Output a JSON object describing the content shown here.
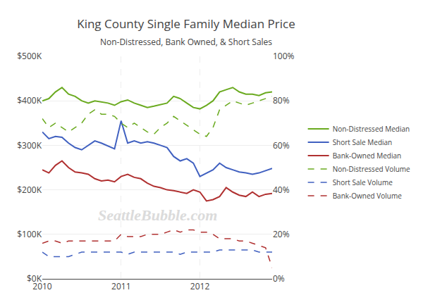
{
  "chart_data": {
    "type": "line",
    "title": "King County Single Family Median Price",
    "subtitle": "Non-Distressed, Bank Owned, & Short Sales",
    "categories": [
      "2010",
      null,
      null,
      null,
      null,
      null,
      null,
      null,
      null,
      null,
      null,
      null,
      "2011",
      null,
      null,
      null,
      null,
      null,
      null,
      null,
      null,
      null,
      null,
      null,
      "2012",
      null,
      null,
      null,
      null,
      null,
      null,
      null,
      null,
      null,
      null,
      null
    ],
    "series": [
      {
        "name": "Non-Distressed Median",
        "color": "#6aaa1f",
        "line_style": "solid",
        "values": [
          400000,
          405000,
          420000,
          430000,
          415000,
          410000,
          400000,
          395000,
          400000,
          398000,
          395000,
          390000,
          398000,
          402000,
          395000,
          390000,
          385000,
          388000,
          392000,
          395000,
          410000,
          405000,
          395000,
          385000,
          382000,
          390000,
          400000,
          420000,
          425000,
          430000,
          420000,
          415000,
          415000,
          412000,
          418000,
          420000
        ]
      },
      {
        "name": "Short Sale Median",
        "color": "#4060c0",
        "line_style": "solid",
        "values": [
          330000,
          315000,
          320000,
          318000,
          305000,
          295000,
          290000,
          300000,
          310000,
          305000,
          298000,
          292000,
          355000,
          305000,
          310000,
          305000,
          308000,
          305000,
          300000,
          295000,
          275000,
          265000,
          270000,
          260000,
          230000,
          238000,
          245000,
          260000,
          250000,
          245000,
          240000,
          238000,
          235000,
          238000,
          243000,
          248000
        ]
      },
      {
        "name": "Bank-Owned Median",
        "color": "#b03030",
        "line_style": "solid",
        "values": [
          245000,
          238000,
          255000,
          265000,
          250000,
          240000,
          238000,
          235000,
          225000,
          220000,
          222000,
          218000,
          230000,
          235000,
          228000,
          225000,
          215000,
          208000,
          205000,
          200000,
          198000,
          195000,
          192000,
          200000,
          195000,
          175000,
          178000,
          185000,
          205000,
          195000,
          188000,
          185000,
          195000,
          185000,
          190000,
          192000
        ]
      },
      {
        "name": "Non-Distressed Volume",
        "color": "#6aaa1f",
        "line_style": "dash",
        "axis": "y2",
        "values": [
          0.72,
          0.68,
          0.7,
          0.68,
          0.66,
          0.68,
          0.7,
          0.74,
          0.76,
          0.74,
          0.74,
          0.73,
          0.7,
          0.68,
          0.7,
          0.68,
          0.66,
          0.65,
          0.68,
          0.7,
          0.73,
          0.71,
          0.69,
          0.67,
          0.65,
          0.64,
          0.68,
          0.76,
          0.78,
          0.8,
          0.79,
          0.78,
          0.79,
          0.8,
          0.81,
          0.82
        ]
      },
      {
        "name": "Short Sale Volume",
        "color": "#4060c0",
        "line_style": "dash",
        "axis": "y2",
        "values": [
          0.12,
          0.1,
          0.1,
          0.1,
          0.1,
          0.11,
          0.12,
          0.12,
          0.12,
          0.12,
          0.12,
          0.12,
          0.12,
          0.11,
          0.12,
          0.12,
          0.12,
          0.12,
          0.12,
          0.12,
          0.12,
          0.11,
          0.12,
          0.12,
          0.12,
          0.12,
          0.12,
          0.13,
          0.13,
          0.13,
          0.13,
          0.13,
          0.13,
          0.12,
          0.12,
          0.12
        ]
      },
      {
        "name": "Bank-Owned Volume",
        "color": "#b03030",
        "line_style": "dash",
        "axis": "y2",
        "values": [
          0.16,
          0.17,
          0.17,
          0.16,
          0.17,
          0.17,
          0.17,
          0.17,
          0.17,
          0.17,
          0.17,
          0.17,
          0.2,
          0.19,
          0.19,
          0.19,
          0.2,
          0.2,
          0.2,
          0.21,
          0.22,
          0.21,
          0.22,
          0.22,
          0.21,
          0.21,
          0.2,
          0.18,
          0.18,
          0.18,
          0.17,
          0.17,
          0.16,
          0.15,
          0.14,
          0.05
        ]
      }
    ],
    "ylim": [
      0,
      500000
    ],
    "yticks": [
      {
        "value": 0,
        "label": "$0K"
      },
      {
        "value": 100000,
        "label": "$100K"
      },
      {
        "value": 200000,
        "label": "$200K"
      },
      {
        "value": 300000,
        "label": "$300K"
      },
      {
        "value": 400000,
        "label": "$400K"
      },
      {
        "value": 500000,
        "label": "$500K"
      }
    ],
    "y2lim": [
      0,
      1.0
    ],
    "y2ticks": [
      {
        "value": 0.0,
        "label": "0%"
      },
      {
        "value": 0.2,
        "label": "20%"
      },
      {
        "value": 0.4,
        "label": "40%"
      },
      {
        "value": 0.6,
        "label": "60%"
      },
      {
        "value": 0.8,
        "label": "80%"
      },
      {
        "value": 1.0,
        "label": "100%"
      }
    ],
    "grid": true,
    "legend": "right",
    "annotations": [
      "SeattleBubble.com"
    ]
  }
}
